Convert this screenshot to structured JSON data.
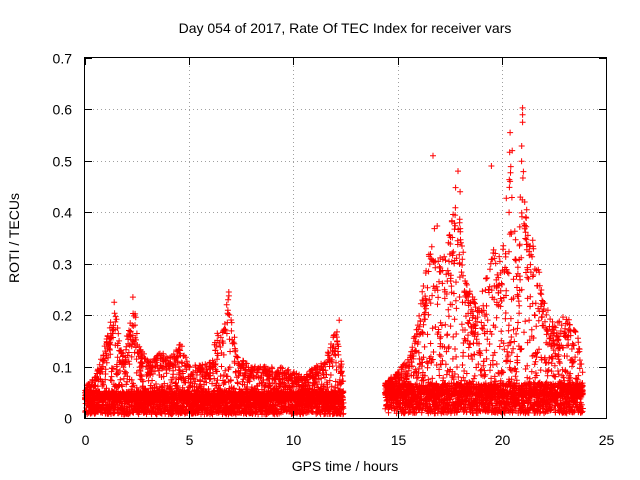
{
  "chart_data": {
    "type": "scatter",
    "title": "Day 054 of 2017, Rate Of TEC Index for receiver vars",
    "xlabel": "GPS time / hours",
    "ylabel": "ROTI / TECUs",
    "xlim": [
      0,
      25
    ],
    "ylim": [
      0,
      0.7
    ],
    "xticks": [
      0,
      5,
      10,
      15,
      20,
      25
    ],
    "yticks": [
      0,
      0.1,
      0.2,
      0.3,
      0.4,
      0.5,
      0.6,
      0.7
    ],
    "grid": true,
    "marker": "+",
    "color": "#ff0000",
    "series": [
      {
        "name": "vars",
        "segments": [
          {
            "x_start": 0.0,
            "x_end": 12.4,
            "base": 0.035,
            "envelope": [
              [
                0.0,
                0.06
              ],
              [
                0.5,
                0.08
              ],
              [
                1.0,
                0.15
              ],
              [
                1.4,
                0.22
              ],
              [
                1.8,
                0.12
              ],
              [
                2.3,
                0.23
              ],
              [
                2.7,
                0.13
              ],
              [
                3.2,
                0.11
              ],
              [
                3.6,
                0.13
              ],
              [
                4.2,
                0.12
              ],
              [
                4.6,
                0.15
              ],
              [
                5.0,
                0.1
              ],
              [
                6.0,
                0.11
              ],
              [
                6.5,
                0.19
              ],
              [
                6.9,
                0.24
              ],
              [
                7.3,
                0.12
              ],
              [
                8.0,
                0.1
              ],
              [
                9.5,
                0.1
              ],
              [
                10.5,
                0.08
              ],
              [
                11.0,
                0.1
              ],
              [
                11.5,
                0.11
              ],
              [
                12.1,
                0.18
              ],
              [
                12.4,
                0.08
              ]
            ]
          },
          {
            "x_start": 14.4,
            "x_end": 23.9,
            "base": 0.045,
            "envelope": [
              [
                14.4,
                0.07
              ],
              [
                15.0,
                0.09
              ],
              [
                15.6,
                0.12
              ],
              [
                16.0,
                0.2
              ],
              [
                16.5,
                0.33
              ],
              [
                16.8,
                0.41
              ],
              [
                17.1,
                0.3
              ],
              [
                17.5,
                0.36
              ],
              [
                17.8,
                0.46
              ],
              [
                18.3,
                0.27
              ],
              [
                18.8,
                0.22
              ],
              [
                19.3,
                0.28
              ],
              [
                19.6,
                0.36
              ],
              [
                20.0,
                0.3
              ],
              [
                20.4,
                0.55
              ],
              [
                20.8,
                0.3
              ],
              [
                21.0,
                0.6
              ],
              [
                21.2,
                0.4
              ],
              [
                21.5,
                0.36
              ],
              [
                22.0,
                0.24
              ],
              [
                22.5,
                0.18
              ],
              [
                23.0,
                0.2
              ],
              [
                23.5,
                0.18
              ],
              [
                23.9,
                0.12
              ]
            ]
          }
        ],
        "outliers": [
          [
            1.4,
            0.225
          ],
          [
            2.3,
            0.235
          ],
          [
            6.9,
            0.245
          ],
          [
            12.2,
            0.19
          ],
          [
            16.7,
            0.51
          ],
          [
            17.9,
            0.48
          ],
          [
            18.0,
            0.44
          ],
          [
            19.5,
            0.49
          ],
          [
            20.4,
            0.555
          ],
          [
            20.5,
            0.52
          ],
          [
            20.4,
            0.46
          ],
          [
            21.0,
            0.603
          ],
          [
            21.0,
            0.575
          ],
          [
            21.1,
            0.42
          ]
        ]
      }
    ]
  }
}
